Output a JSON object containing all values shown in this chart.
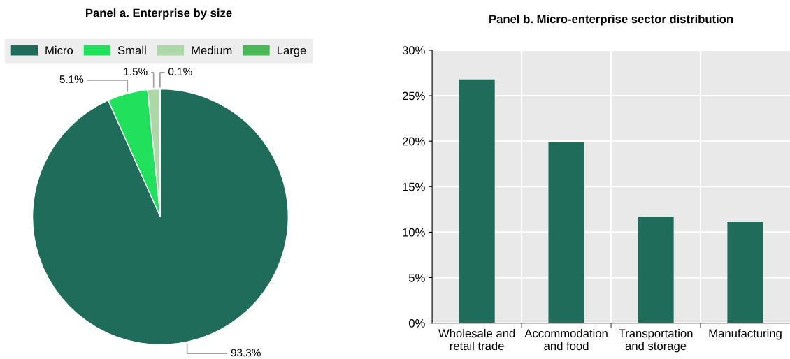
{
  "chart_data": [
    {
      "type": "pie",
      "title": "Panel a. Enterprise by size",
      "categories": [
        "Micro",
        "Small",
        "Medium",
        "Large"
      ],
      "values": [
        93.3,
        5.1,
        1.5,
        0.1
      ],
      "colors": [
        "#206c5a",
        "#21e05c",
        "#acd8a8",
        "#4bb857"
      ],
      "value_labels": [
        "93.3%",
        "5.1%",
        "1.5%",
        "0.1%"
      ],
      "legend": "top"
    },
    {
      "type": "bar",
      "title": "Panel b. Micro-enterprise sector distribution",
      "categories": [
        "Wholesale and\nretail trade",
        "Accommodation\nand food",
        "Transportation\nand storage",
        "Manufacturing"
      ],
      "values": [
        26.8,
        19.9,
        11.7,
        11.1
      ],
      "color": "#206c5a",
      "ylim": [
        0,
        30
      ],
      "yticks": [
        {
          "value": 0,
          "label": "0%"
        },
        {
          "value": 5,
          "label": "5%"
        },
        {
          "value": 10,
          "label": "10%"
        },
        {
          "value": 15,
          "label": "15%"
        },
        {
          "value": 20,
          "label": "20%"
        },
        {
          "value": 25,
          "label": "25%"
        },
        {
          "value": 30,
          "label": "30%"
        }
      ],
      "grid": true
    }
  ]
}
